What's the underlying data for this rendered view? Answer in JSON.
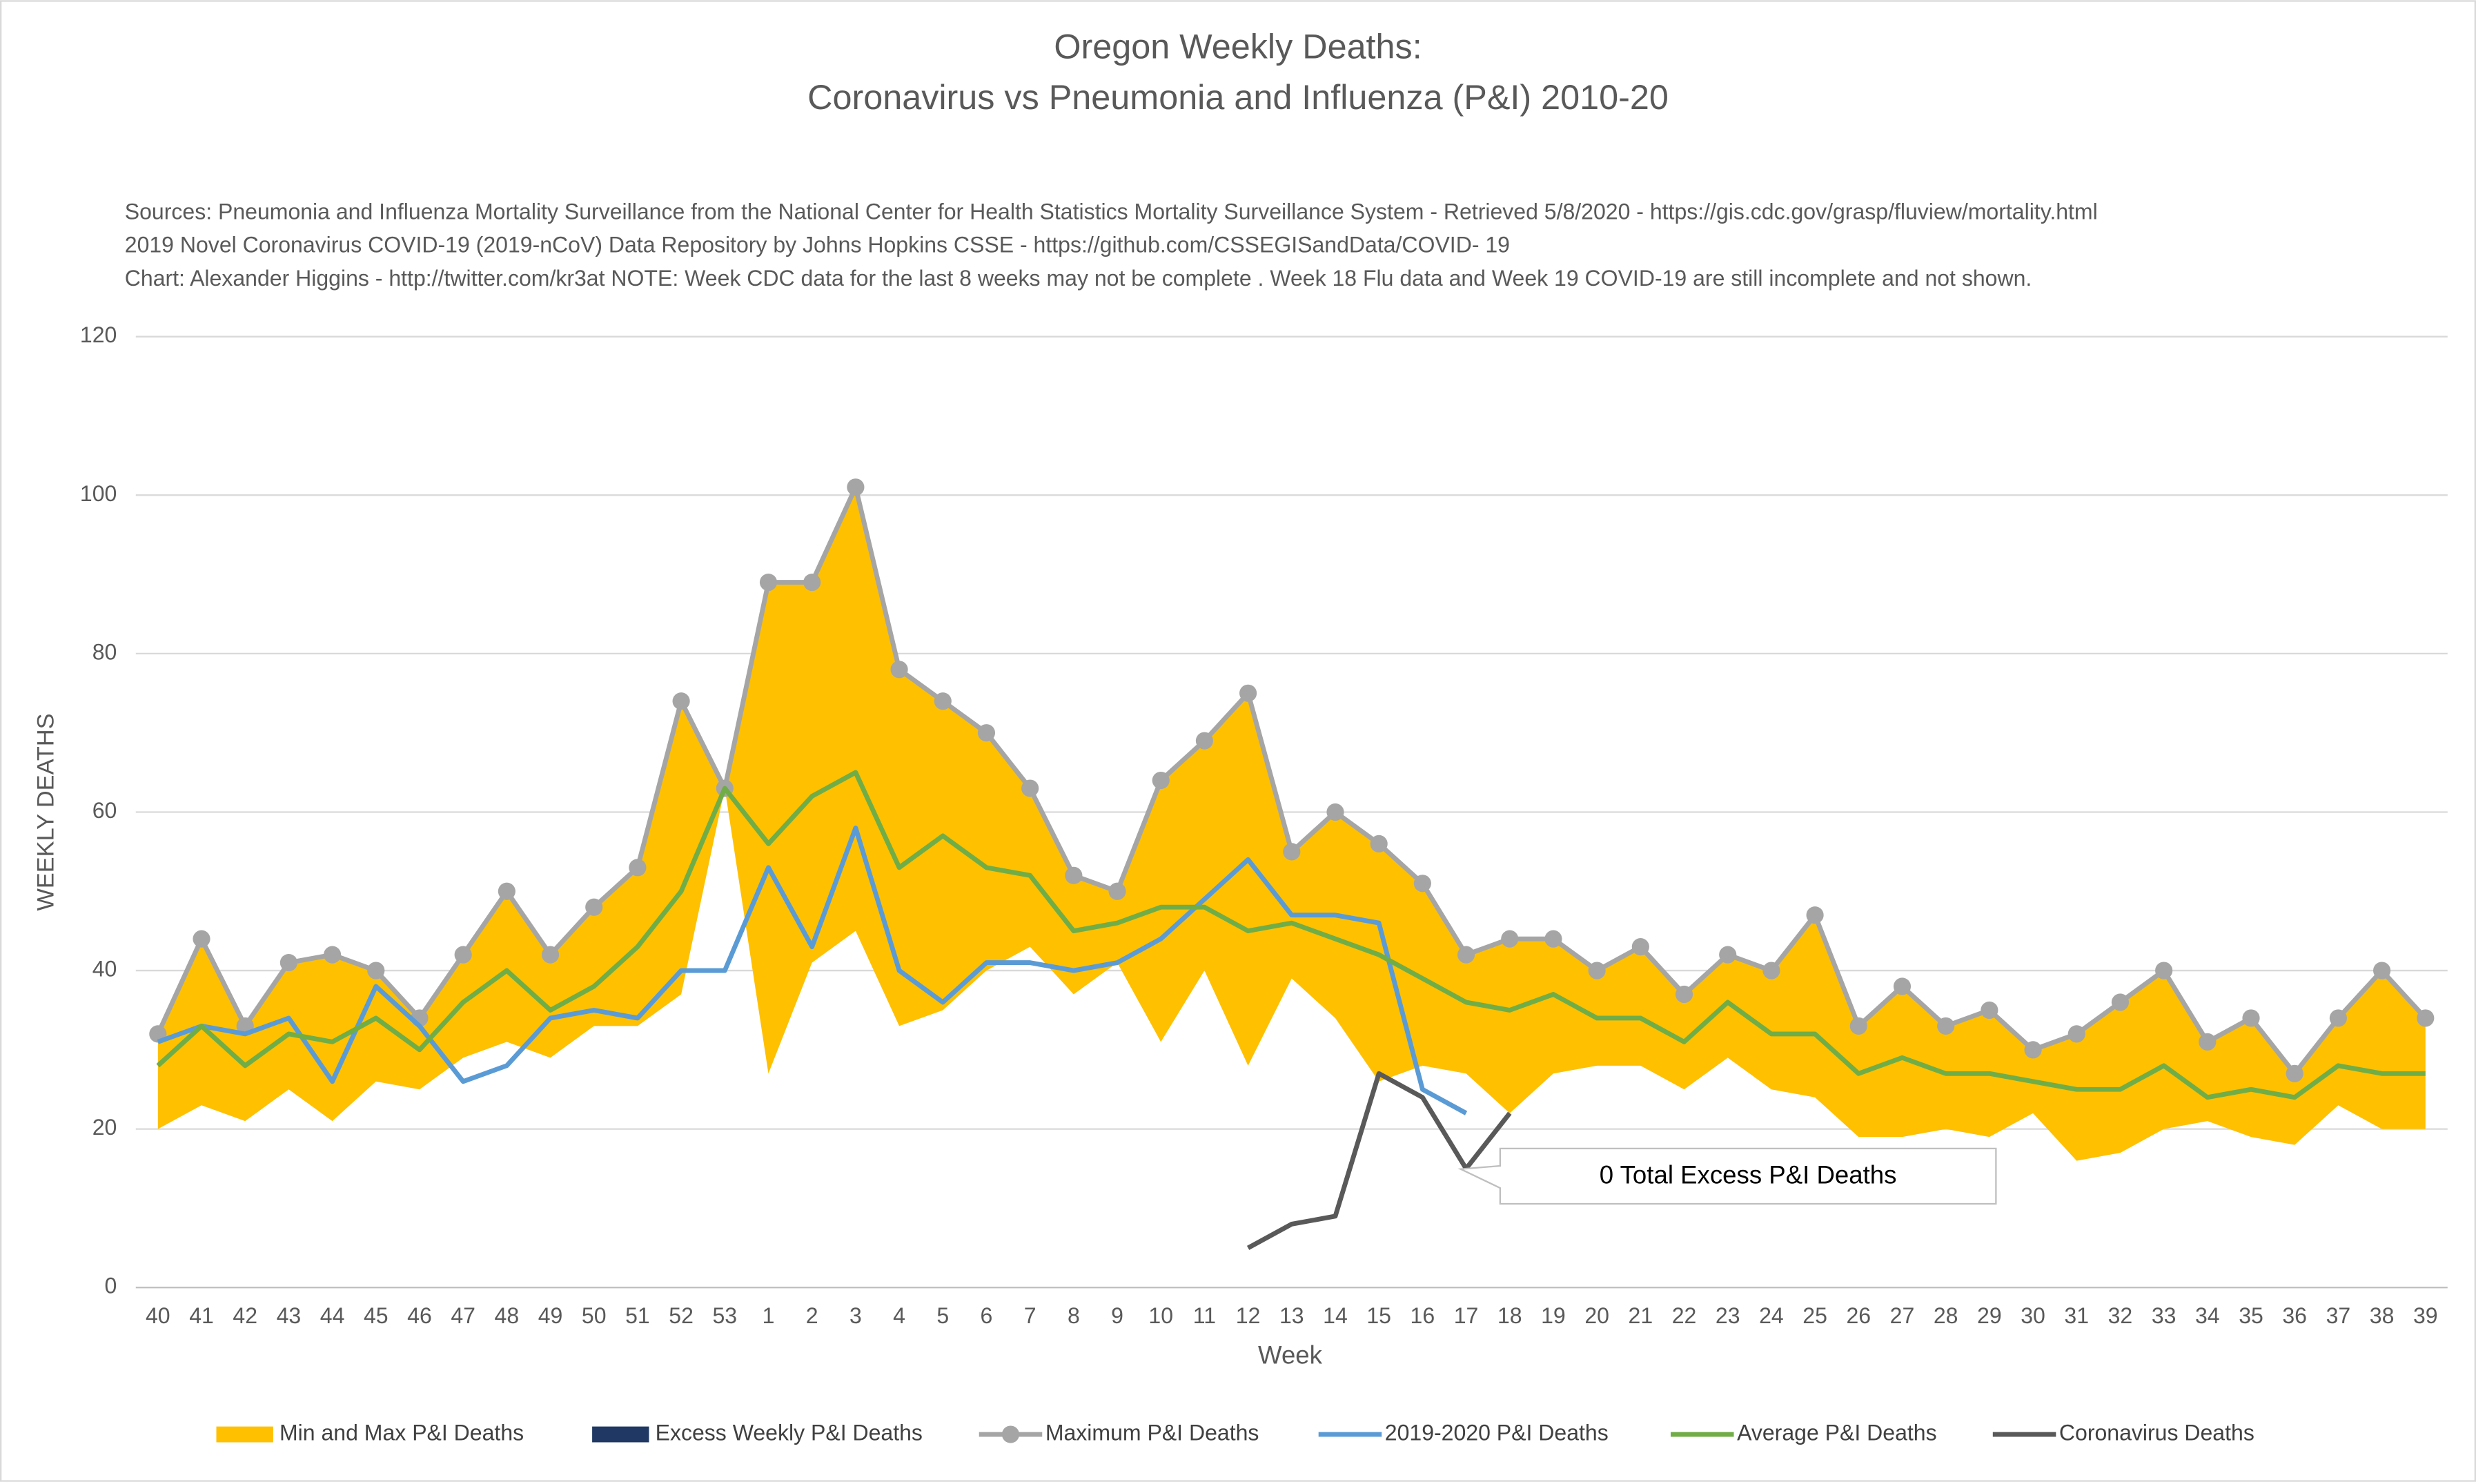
{
  "chart_data": {
    "type": "line",
    "title": [
      "Oregon Weekly Deaths:",
      "Coronavirus vs Pneumonia and Influenza (P&I) 2010-20"
    ],
    "subtitle": [
      "Sources: Pneumonia and Influenza Mortality Surveillance from the National Center for Health Statistics Mortality Surveillance System - Retrieved 5/8/2020 - https://gis.cdc.gov/grasp/fluview/mortality.html",
      "2019 Novel Coronavirus COVID-19 (2019-nCoV) Data Repository by Johns Hopkins CSSE - https://github.com/CSSEGISandData/COVID- 19",
      "Chart: Alexander Higgins - http://twitter.com/kr3at   NOTE: Week CDC data for the last 8 weeks may not be complete . Week 18 Flu data and Week 19 COVID-19 are still incomplete and not shown."
    ],
    "x_label": "Week",
    "y_label": "WEEKLY DEATHS",
    "annotation": "0 Total Excess P&I Deaths",
    "categories": [
      "40",
      "41",
      "42",
      "43",
      "44",
      "45",
      "46",
      "47",
      "48",
      "49",
      "50",
      "51",
      "52",
      "53",
      "1",
      "2",
      "3",
      "4",
      "5",
      "6",
      "7",
      "8",
      "9",
      "10",
      "11",
      "12",
      "13",
      "14",
      "15",
      "16",
      "17",
      "18",
      "19",
      "20",
      "21",
      "22",
      "23",
      "24",
      "25",
      "26",
      "27",
      "28",
      "29",
      "30",
      "31",
      "32",
      "33",
      "34",
      "35",
      "36",
      "37",
      "38",
      "39"
    ],
    "ylim": [
      0,
      120
    ],
    "yticks": [
      0,
      20,
      40,
      60,
      80,
      100,
      120
    ],
    "grid": true,
    "series": [
      {
        "name": "Min and Max P&I Deaths",
        "color": "#ffc000",
        "kind": "range",
        "low": [
          20,
          23,
          21,
          25,
          21,
          26,
          25,
          29,
          31,
          29,
          33,
          33,
          37,
          63,
          27,
          41,
          45,
          33,
          35,
          40,
          43,
          37,
          41,
          31,
          40,
          28,
          39,
          34,
          26,
          28,
          27,
          22,
          27,
          28,
          28,
          25,
          29,
          25,
          24,
          19,
          19,
          20,
          19,
          22,
          16,
          17,
          20,
          21,
          19,
          18,
          23,
          20,
          20
        ],
        "high": [
          32,
          44,
          33,
          41,
          42,
          40,
          34,
          42,
          50,
          42,
          48,
          53,
          74,
          63,
          89,
          89,
          101,
          78,
          74,
          70,
          63,
          52,
          50,
          64,
          69,
          75,
          55,
          60,
          56,
          51,
          42,
          44,
          44,
          40,
          43,
          37,
          42,
          40,
          47,
          33,
          38,
          33,
          35,
          30,
          32,
          36,
          40,
          31,
          34,
          27,
          34,
          40,
          34
        ]
      },
      {
        "name": "Excess Weekly P&I Deaths",
        "color": "#1f3864",
        "kind": "swatch",
        "values": [
          null,
          null,
          null,
          null,
          null,
          null,
          null,
          null,
          null,
          null,
          null,
          null,
          null,
          null,
          null,
          null,
          null,
          null,
          null,
          null,
          null,
          null,
          null,
          null,
          null,
          null,
          null,
          null,
          null,
          null,
          null,
          null,
          null,
          null,
          null,
          null,
          null,
          null,
          null,
          null,
          null,
          null,
          null,
          null,
          null,
          null,
          null,
          null,
          null,
          null,
          null,
          null,
          null
        ]
      },
      {
        "name": "Maximum P&I Deaths",
        "color": "#a5a5a5",
        "kind": "marker-line",
        "values": [
          32,
          44,
          33,
          41,
          42,
          40,
          34,
          42,
          50,
          42,
          48,
          53,
          74,
          63,
          89,
          89,
          101,
          78,
          74,
          70,
          63,
          52,
          50,
          64,
          69,
          75,
          55,
          60,
          56,
          51,
          42,
          44,
          44,
          40,
          43,
          37,
          42,
          40,
          47,
          33,
          38,
          33,
          35,
          30,
          32,
          36,
          40,
          31,
          34,
          27,
          34,
          40,
          34
        ]
      },
      {
        "name": "2019-2020 P&I Deaths",
        "color": "#5b9bd5",
        "kind": "line",
        "values": [
          31,
          33,
          32,
          34,
          26,
          38,
          33,
          26,
          28,
          34,
          35,
          34,
          40,
          40,
          53,
          43,
          58,
          40,
          36,
          41,
          41,
          40,
          41,
          44,
          49,
          54,
          47,
          47,
          46,
          25,
          22,
          null,
          null,
          null,
          null,
          null,
          null,
          null,
          null,
          null,
          null,
          null,
          null,
          null,
          null,
          null,
          null,
          null,
          null,
          null,
          null,
          null,
          null
        ]
      },
      {
        "name": "Average P&I Deaths",
        "color": "#70ad47",
        "kind": "line",
        "values": [
          28,
          33,
          28,
          32,
          31,
          34,
          30,
          36,
          40,
          35,
          38,
          43,
          50,
          63,
          56,
          62,
          65,
          53,
          57,
          53,
          52,
          45,
          46,
          48,
          48,
          45,
          46,
          44,
          42,
          39,
          36,
          35,
          37,
          34,
          34,
          31,
          36,
          32,
          32,
          27,
          29,
          27,
          27,
          26,
          25,
          25,
          28,
          24,
          25,
          24,
          28,
          27,
          27
        ]
      },
      {
        "name": "Coronavirus Deaths",
        "color": "#595959",
        "kind": "line",
        "values": [
          null,
          null,
          null,
          null,
          null,
          null,
          null,
          null,
          null,
          null,
          null,
          null,
          null,
          null,
          null,
          null,
          null,
          null,
          null,
          null,
          null,
          null,
          null,
          null,
          null,
          5,
          8,
          9,
          27,
          24,
          15,
          22,
          null,
          null,
          null,
          null,
          null,
          null,
          null,
          null,
          null,
          null,
          null,
          null,
          null,
          null,
          null,
          null,
          null,
          null,
          null,
          null,
          null
        ]
      }
    ]
  }
}
